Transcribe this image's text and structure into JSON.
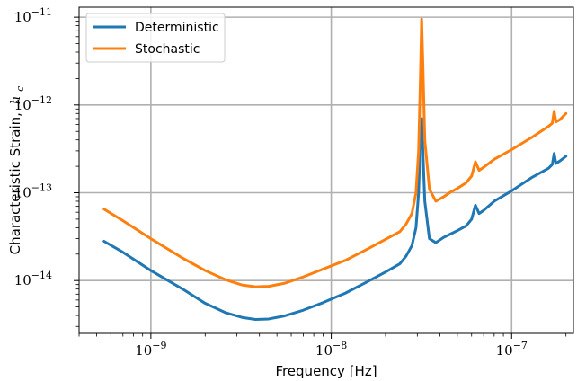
{
  "chart_data": {
    "type": "line",
    "title": "",
    "xlabel": "Frequency [Hz]",
    "ylabel": "Characteristic Strain, h_c",
    "ylabel_prefix": "Characteristic Strain,",
    "ylabel_symbol": "h",
    "ylabel_subscript": "c",
    "x_scale": "log",
    "y_scale": "log",
    "xlim": [
      4e-10,
      2.2e-07
    ],
    "ylim": [
      2.5e-15,
      1.3e-11
    ],
    "x_ticks": [
      {
        "value": 1e-09,
        "base": "10",
        "exp": "−9"
      },
      {
        "value": 1e-08,
        "base": "10",
        "exp": "−8"
      },
      {
        "value": 1e-07,
        "base": "10",
        "exp": "−7"
      }
    ],
    "y_ticks": [
      {
        "value": 1e-14,
        "base": "10",
        "exp": "−14"
      },
      {
        "value": 1e-13,
        "base": "10",
        "exp": "−13"
      },
      {
        "value": 1e-12,
        "base": "10",
        "exp": "−12"
      },
      {
        "value": 1e-11,
        "base": "10",
        "exp": "−11"
      }
    ],
    "grid": true,
    "legend_position": "top-left",
    "series": [
      {
        "name": "Deterministic",
        "color": "#1f77b4",
        "points": [
          [
            5.5e-10,
            2.8e-14
          ],
          [
            7e-10,
            2.1e-14
          ],
          [
            1e-09,
            1.3e-14
          ],
          [
            1.5e-09,
            8e-15
          ],
          [
            2e-09,
            5.5e-15
          ],
          [
            2.6e-09,
            4.3e-15
          ],
          [
            3.2e-09,
            3.8e-15
          ],
          [
            3.8e-09,
            3.6e-15
          ],
          [
            4.5e-09,
            3.65e-15
          ],
          [
            5.5e-09,
            3.95e-15
          ],
          [
            7e-09,
            4.6e-15
          ],
          [
            9e-09,
            5.6e-15
          ],
          [
            1.2e-08,
            7.2e-15
          ],
          [
            1.6e-08,
            9.8e-15
          ],
          [
            2e-08,
            1.25e-14
          ],
          [
            2.4e-08,
            1.55e-14
          ],
          [
            2.6e-08,
            1.9e-14
          ],
          [
            2.8e-08,
            2.5e-14
          ],
          [
            2.95e-08,
            4e-14
          ],
          [
            3.05e-08,
            1e-13
          ],
          [
            3.12e-08,
            4e-13
          ],
          [
            3.17e-08,
            7e-13
          ],
          [
            3.22e-08,
            3e-13
          ],
          [
            3.3e-08,
            8e-14
          ],
          [
            3.5e-08,
            3e-14
          ],
          [
            3.8e-08,
            2.7e-14
          ],
          [
            4.2e-08,
            3.1e-14
          ],
          [
            4.6e-08,
            3.4e-14
          ],
          [
            5e-08,
            3.7e-14
          ],
          [
            5.6e-08,
            4.2e-14
          ],
          [
            6e-08,
            5e-14
          ],
          [
            6.3e-08,
            7.2e-14
          ],
          [
            6.6e-08,
            5.8e-14
          ],
          [
            7e-08,
            6.3e-14
          ],
          [
            8e-08,
            8e-14
          ],
          [
            1e-07,
            1.05e-13
          ],
          [
            1.3e-07,
            1.5e-13
          ],
          [
            1.6e-07,
            1.9e-13
          ],
          [
            1.68e-07,
            2.1e-13
          ],
          [
            1.72e-07,
            2.8e-13
          ],
          [
            1.76e-07,
            2.15e-13
          ],
          [
            1.85e-07,
            2.3e-13
          ],
          [
            2e-07,
            2.6e-13
          ]
        ]
      },
      {
        "name": "Stochastic",
        "color": "#ff7f0e",
        "points": [
          [
            5.5e-10,
            6.5e-14
          ],
          [
            7e-10,
            4.8e-14
          ],
          [
            1e-09,
            3e-14
          ],
          [
            1.5e-09,
            1.8e-14
          ],
          [
            2e-09,
            1.3e-14
          ],
          [
            2.6e-09,
            1.02e-14
          ],
          [
            3.2e-09,
            8.9e-15
          ],
          [
            3.8e-09,
            8.5e-15
          ],
          [
            4.5e-09,
            8.6e-15
          ],
          [
            5.5e-09,
            9.3e-15
          ],
          [
            7e-09,
            1.1e-14
          ],
          [
            9e-09,
            1.35e-14
          ],
          [
            1.2e-08,
            1.7e-14
          ],
          [
            1.6e-08,
            2.3e-14
          ],
          [
            2e-08,
            2.95e-14
          ],
          [
            2.4e-08,
            3.6e-14
          ],
          [
            2.6e-08,
            4.4e-14
          ],
          [
            2.8e-08,
            5.8e-14
          ],
          [
            2.95e-08,
            1e-13
          ],
          [
            3.05e-08,
            3e-13
          ],
          [
            3.12e-08,
            2e-12
          ],
          [
            3.17e-08,
            9.5e-12
          ],
          [
            3.22e-08,
            3e-12
          ],
          [
            3.3e-08,
            4e-13
          ],
          [
            3.5e-08,
            1.1e-13
          ],
          [
            3.8e-08,
            8e-14
          ],
          [
            4.2e-08,
            9e-14
          ],
          [
            4.6e-08,
            1.02e-13
          ],
          [
            5e-08,
            1.12e-13
          ],
          [
            5.6e-08,
            1.3e-13
          ],
          [
            6e-08,
            1.55e-13
          ],
          [
            6.3e-08,
            2.25e-13
          ],
          [
            6.6e-08,
            1.8e-13
          ],
          [
            7e-08,
            1.95e-13
          ],
          [
            8e-08,
            2.4e-13
          ],
          [
            1e-07,
            3.1e-13
          ],
          [
            1.3e-07,
            4.3e-13
          ],
          [
            1.6e-07,
            5.7e-13
          ],
          [
            1.68e-07,
            6.2e-13
          ],
          [
            1.72e-07,
            8.5e-13
          ],
          [
            1.76e-07,
            6.4e-13
          ],
          [
            1.85e-07,
            6.8e-13
          ],
          [
            2e-07,
            8e-13
          ]
        ]
      }
    ]
  }
}
